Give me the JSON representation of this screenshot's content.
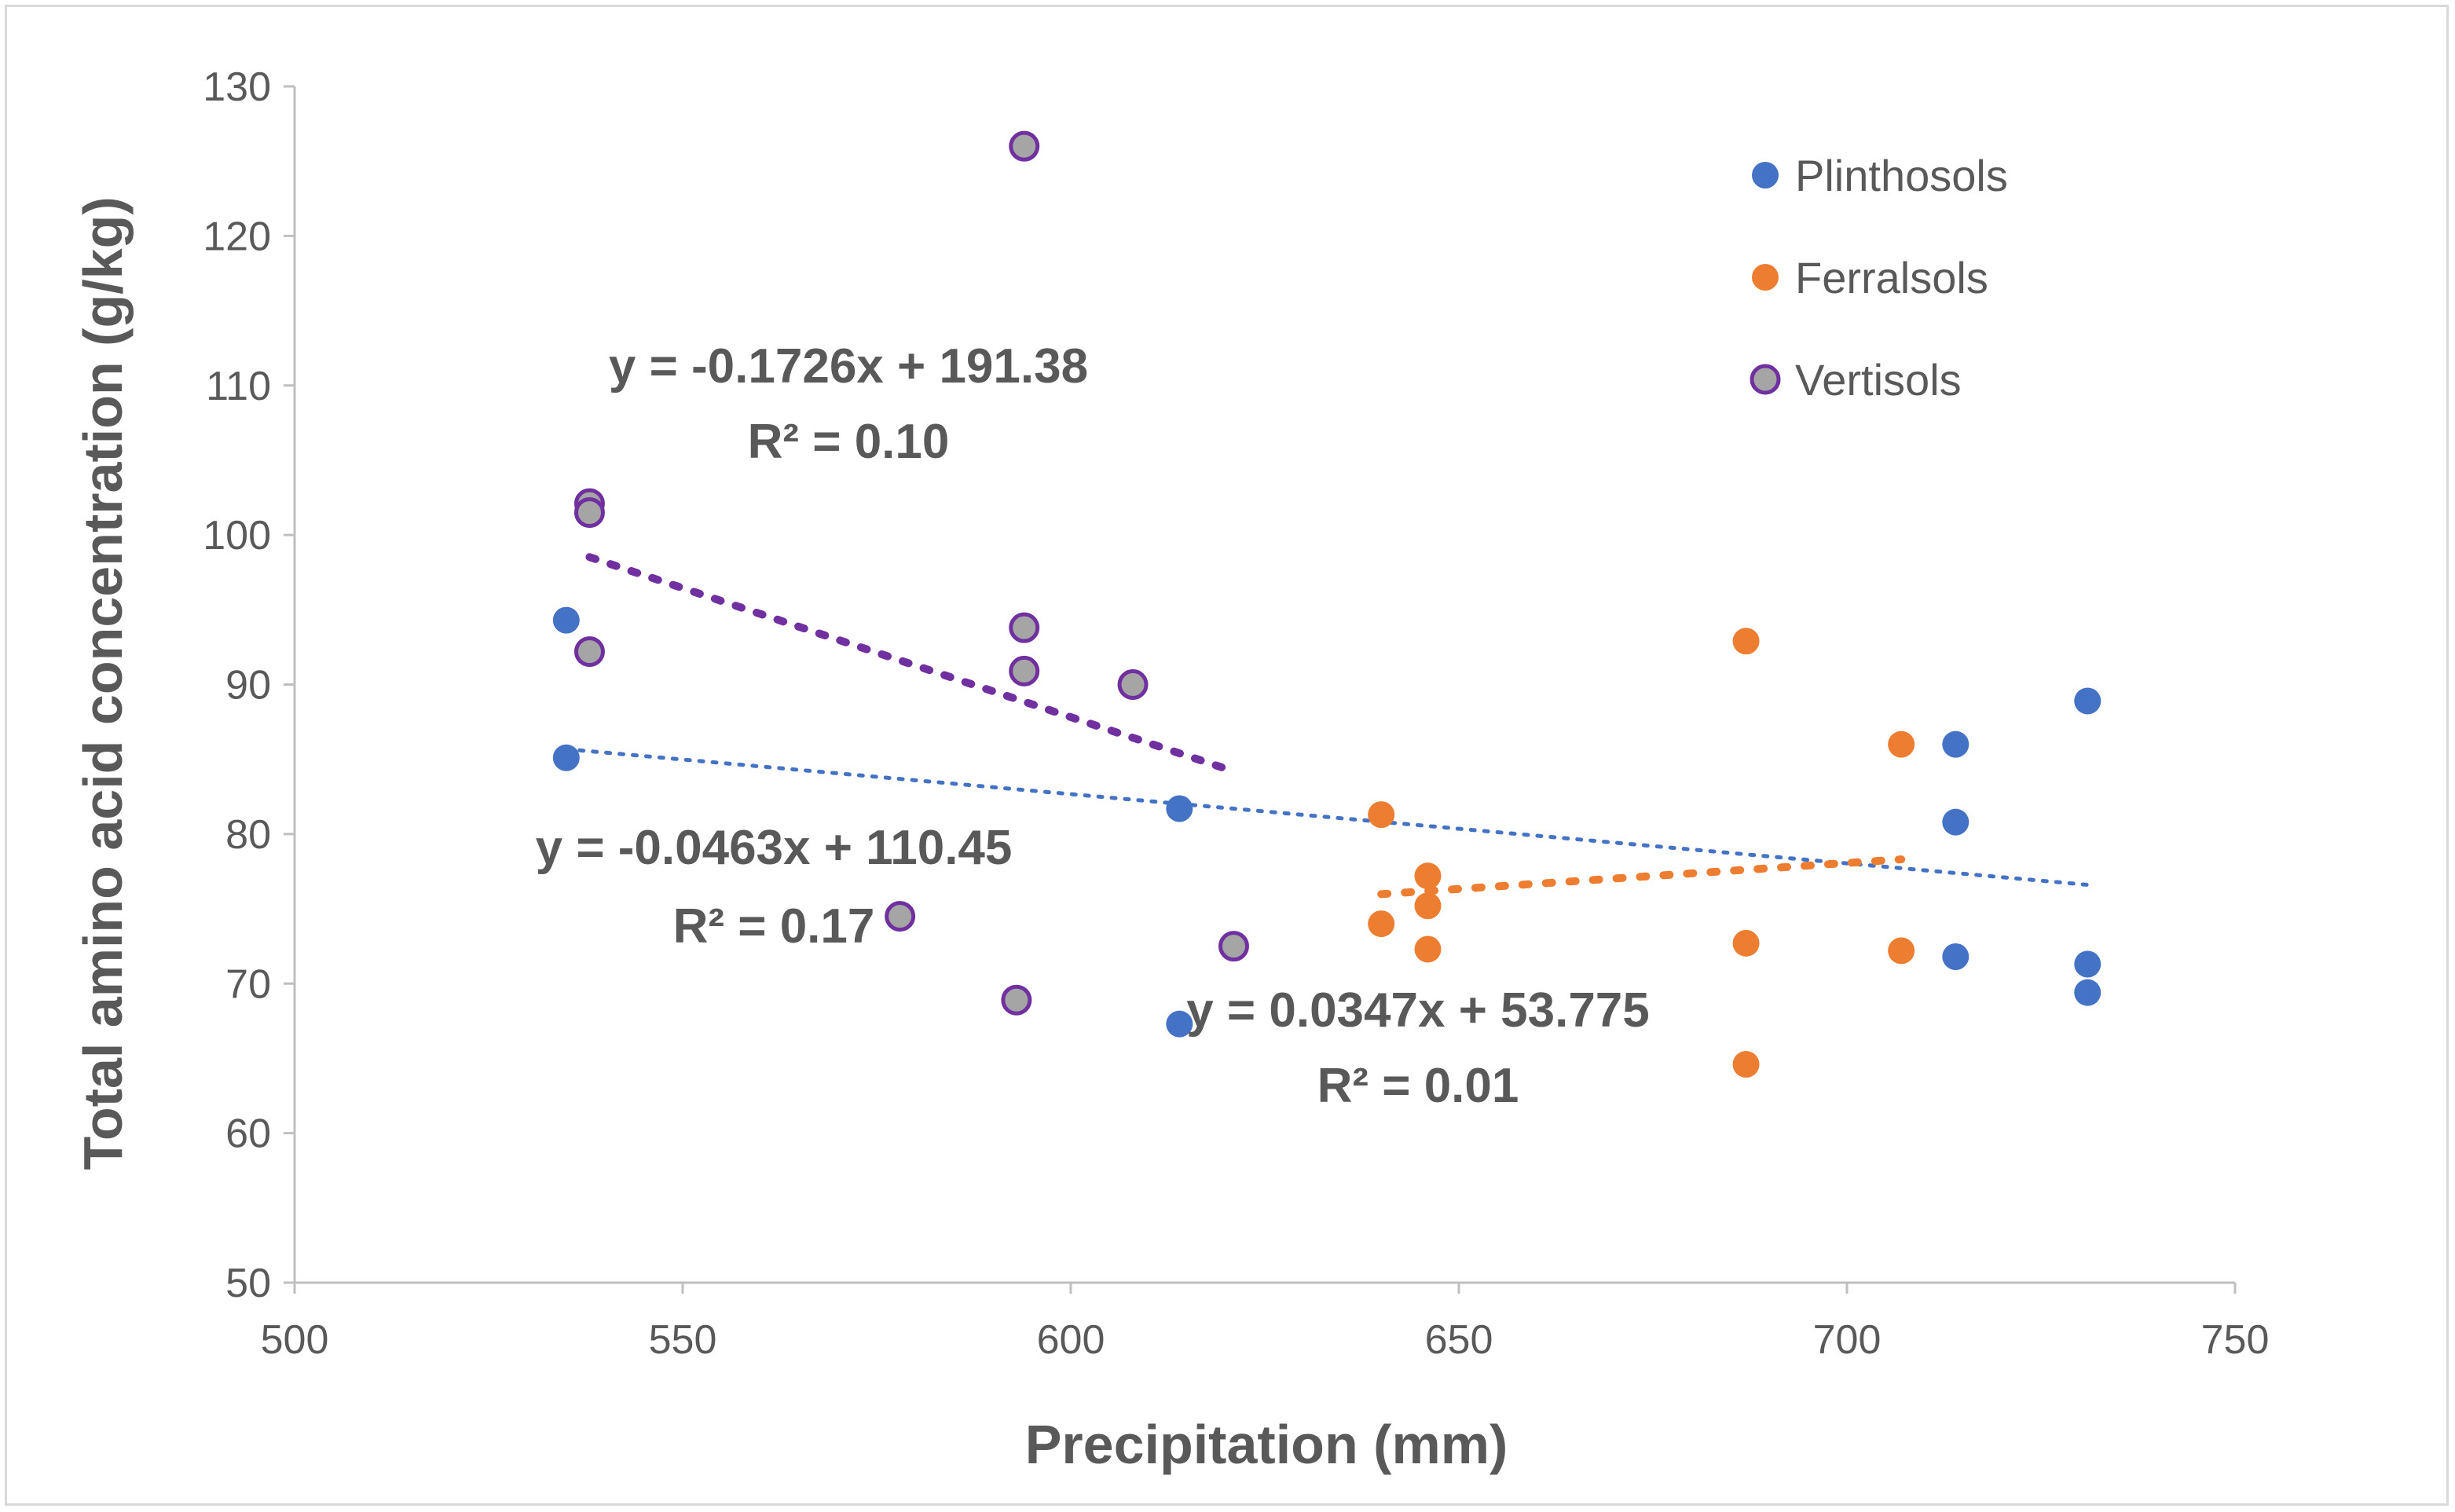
{
  "chart_data": {
    "type": "scatter",
    "title": "",
    "xlabel": "Precipitation (mm)",
    "ylabel": "Total amino acid concentration (g/kg)",
    "xlim": [
      500,
      750
    ],
    "ylim": [
      50,
      130
    ],
    "xticks": [
      500,
      550,
      600,
      650,
      700,
      750
    ],
    "yticks": [
      50,
      60,
      70,
      80,
      90,
      100,
      110,
      120,
      130
    ],
    "grid": false,
    "legend_position": "top-right",
    "series": [
      {
        "name": "Plinthosols",
        "color": "#4472c4",
        "edge_color": "#4472c4",
        "points": [
          [
            535,
            94.3
          ],
          [
            535,
            85.1
          ],
          [
            614,
            81.7
          ],
          [
            614,
            67.3
          ],
          [
            714,
            86.0
          ],
          [
            714,
            80.8
          ],
          [
            714,
            71.8
          ],
          [
            731,
            88.9
          ],
          [
            731,
            71.3
          ],
          [
            731,
            69.4
          ]
        ],
        "trendline": {
          "x_range": [
            535,
            731
          ],
          "slope": -0.0463,
          "intercept": 110.45,
          "equation": "y = -0.0463x + 110.45",
          "r2": "R² = 0.17"
        }
      },
      {
        "name": "Ferralsols",
        "color": "#ed7d31",
        "edge_color": "#ed7d31",
        "points": [
          [
            640,
            81.3
          ],
          [
            640,
            74.0
          ],
          [
            646,
            77.2
          ],
          [
            646,
            75.2
          ],
          [
            646,
            72.3
          ],
          [
            687,
            92.9
          ],
          [
            687,
            72.7
          ],
          [
            687,
            64.6
          ],
          [
            707,
            86.0
          ],
          [
            707,
            72.2
          ]
        ],
        "trendline": {
          "x_range": [
            640,
            707
          ],
          "slope": 0.0347,
          "intercept": 53.775,
          "equation": "y = 0.0347x + 53.775",
          "r2": "R² = 0.01"
        }
      },
      {
        "name": "Vertisols",
        "color": "#a5a5a5",
        "edge_color": "#7030a0",
        "points": [
          [
            538,
            102.1
          ],
          [
            538,
            101.5
          ],
          [
            538,
            92.2
          ],
          [
            578,
            74.5
          ],
          [
            593,
            68.9
          ],
          [
            594,
            126.0
          ],
          [
            594,
            93.8
          ],
          [
            594,
            90.9
          ],
          [
            608,
            90.0
          ],
          [
            621,
            72.5
          ]
        ],
        "trendline": {
          "x_range": [
            538,
            621
          ],
          "slope": -0.1726,
          "intercept": 191.38,
          "equation": "y = -0.1726x + 191.38",
          "r2": "R² = 0.10"
        }
      }
    ]
  }
}
